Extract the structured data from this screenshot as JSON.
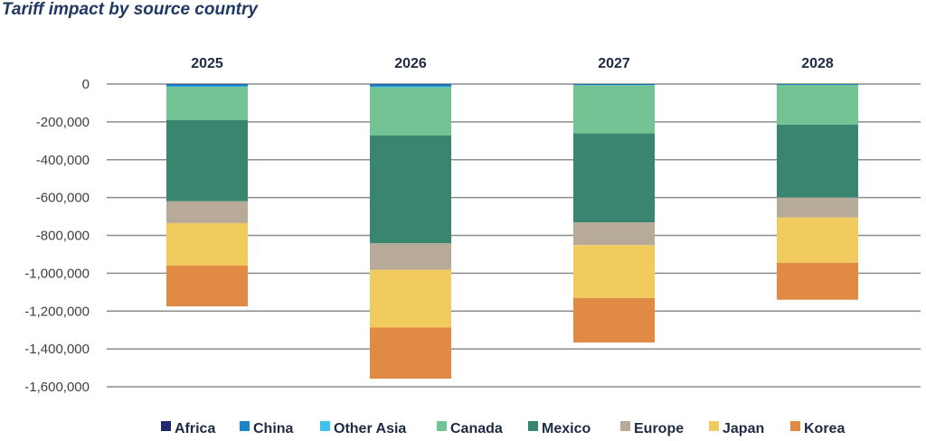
{
  "chart_data": {
    "type": "bar",
    "stacked": true,
    "title": "Tariff impact by source country",
    "xlabel": "",
    "ylabel": "",
    "categories": [
      "2025",
      "2026",
      "2027",
      "2028"
    ],
    "category_axis_position": "top",
    "ylim": [
      -1600000,
      0
    ],
    "ytick_values": [
      0,
      -200000,
      -400000,
      -600000,
      -800000,
      -1000000,
      -1200000,
      -1400000,
      -1600000
    ],
    "ytick_labels": [
      "0",
      "-200,000",
      "-400,000",
      "-600,000",
      "-800,000",
      "-1,000,000",
      "-1,200,000",
      "-1,400,000",
      "-1,600,000"
    ],
    "grid": true,
    "legend_position": "bottom",
    "series": [
      {
        "name": "Africa",
        "color": "#1f2a6e",
        "values": [
          -2000,
          -2000,
          -1000,
          -1000
        ]
      },
      {
        "name": "China",
        "color": "#1a86c8",
        "values": [
          -10000,
          -12000,
          -4000,
          -3000
        ]
      },
      {
        "name": "Other Asia",
        "color": "#3ec3f0",
        "values": [
          -3000,
          -3000,
          -1000,
          -1000
        ]
      },
      {
        "name": "Canada",
        "color": "#74c394",
        "values": [
          -175000,
          -255000,
          -255000,
          -210000
        ]
      },
      {
        "name": "Mexico",
        "color": "#398570",
        "values": [
          -430000,
          -570000,
          -470000,
          -385000
        ]
      },
      {
        "name": "Europe",
        "color": "#b8aa98",
        "values": [
          -115000,
          -140000,
          -120000,
          -105000
        ]
      },
      {
        "name": "Japan",
        "color": "#f2cb5e",
        "values": [
          -225000,
          -305000,
          -280000,
          -240000
        ]
      },
      {
        "name": "Korea",
        "color": "#e08a44",
        "values": [
          -215000,
          -270000,
          -235000,
          -195000
        ]
      }
    ]
  }
}
